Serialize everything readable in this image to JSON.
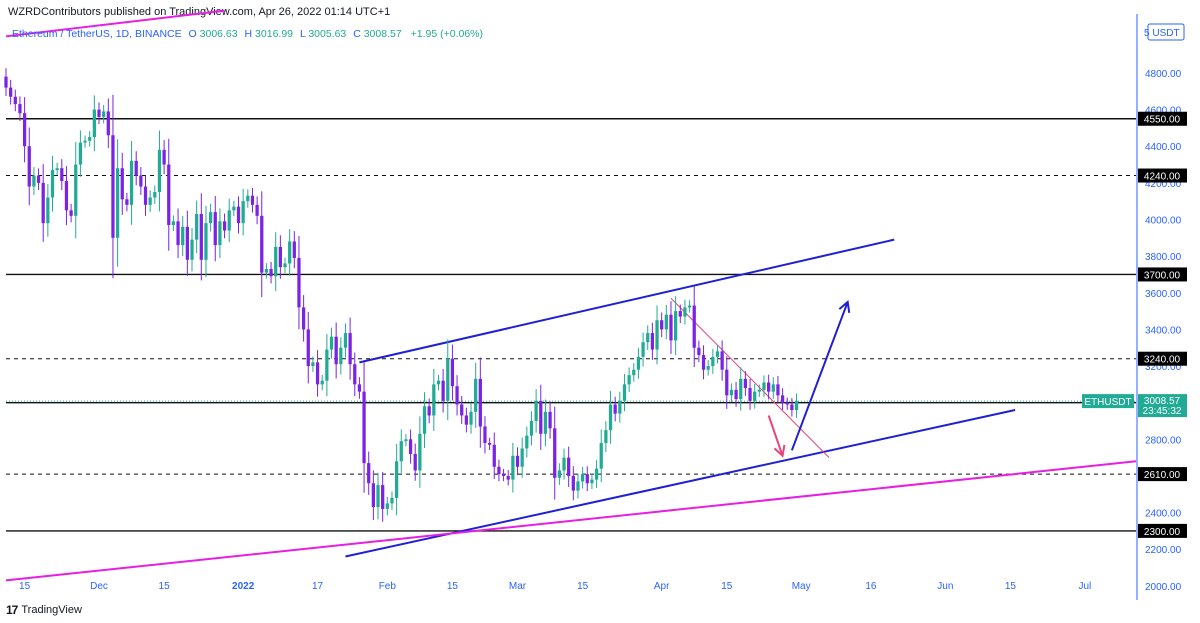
{
  "header": {
    "published": "WZRDContributors published on TradingView.com, Apr 26, 2022 01:14 UTC+1"
  },
  "legend": {
    "symbol": "Ethereum / TetherUS, 1D, BINANCE",
    "o_label": "O",
    "o_value": "3006.63",
    "h_label": "H",
    "h_value": "3016.99",
    "l_label": "L",
    "l_value": "3005.63",
    "c_label": "C",
    "c_value": "3008.57",
    "change": "+1.95 (+0.06%)"
  },
  "currency_badge": "USDT",
  "price_scale_partial": "5",
  "footer": {
    "brand_icon": "17",
    "brand_text": "TradingView"
  },
  "colors": {
    "up": "#22ab94",
    "down": "#7b22e5",
    "axis_text": "#2962ff",
    "blue_trend": "#1f1fd6",
    "magenta_trend": "#e61ee6",
    "red_trend": "#e8467a",
    "label_bg": "#000000",
    "current_price_bg": "#22ab94"
  },
  "chart_data": {
    "type": "candlestick",
    "symbol": "Ethereum / TetherUS",
    "interval": "1D",
    "exchange": "BINANCE",
    "ylim": [
      1950,
      5100
    ],
    "y_ticks": [
      2000,
      2200,
      2400,
      2600,
      2800,
      3000,
      3200,
      3400,
      3600,
      3800,
      4000,
      4200,
      4400,
      4600,
      4800
    ],
    "y_tick_labels": [
      "2000.00",
      "2200.00",
      "2400.00",
      "2600.00",
      "2800.00",
      "3000.00",
      "3200.00",
      "3400.00",
      "3600.00",
      "3800.00",
      "4000.00",
      "4200.00",
      "4400.00",
      "4600.00",
      "4800.00"
    ],
    "x_date_range": [
      "2021-11-11",
      "2022-07-12"
    ],
    "x_ticks": [
      {
        "date": "2021-11-15",
        "label": "15"
      },
      {
        "date": "2021-12-01",
        "label": "Dec"
      },
      {
        "date": "2021-12-15",
        "label": "15"
      },
      {
        "date": "2022-01-01",
        "label": "2022"
      },
      {
        "date": "2022-01-17",
        "label": "17"
      },
      {
        "date": "2022-02-01",
        "label": "Feb"
      },
      {
        "date": "2022-02-15",
        "label": "15"
      },
      {
        "date": "2022-03-01",
        "label": "Mar"
      },
      {
        "date": "2022-03-15",
        "label": "15"
      },
      {
        "date": "2022-04-01",
        "label": "Apr"
      },
      {
        "date": "2022-04-15",
        "label": "15"
      },
      {
        "date": "2022-05-01",
        "label": "May"
      },
      {
        "date": "2022-05-16",
        "label": "16"
      },
      {
        "date": "2022-06-01",
        "label": "Jun"
      },
      {
        "date": "2022-06-15",
        "label": "15"
      },
      {
        "date": "2022-07-01",
        "label": "Jul"
      }
    ],
    "start_date": "2021-11-11",
    "closes": [
      4720,
      4670,
      4630,
      4580,
      4400,
      4180,
      4240,
      4200,
      3980,
      4120,
      4270,
      4280,
      4210,
      4050,
      4020,
      4300,
      4420,
      4430,
      4450,
      4600,
      4560,
      4590,
      4460,
      3900,
      4280,
      4110,
      4080,
      4320,
      4240,
      4180,
      4080,
      4120,
      4150,
      4380,
      4300,
      3970,
      3990,
      3860,
      3960,
      3780,
      3890,
      4030,
      3780,
      3980,
      4040,
      3860,
      3990,
      3940,
      4050,
      4070,
      3980,
      4100,
      4130,
      4080,
      4020,
      3710,
      3730,
      3690,
      3850,
      3740,
      3760,
      3880,
      3790,
      3520,
      3400,
      3200,
      3220,
      3100,
      3120,
      3290,
      3360,
      3210,
      3300,
      3380,
      3210,
      3100,
      3060,
      2670,
      2560,
      2430,
      2550,
      2420,
      2450,
      2480,
      2680,
      2790,
      2800,
      2720,
      2630,
      2830,
      2980,
      2930,
      3100,
      3120,
      3010,
      3240,
      3090,
      2990,
      2930,
      2880,
      2950,
      3130,
      2870,
      2780,
      2770,
      2650,
      2610,
      2600,
      2580,
      2710,
      2650,
      2750,
      2820,
      2900,
      3010,
      2830,
      2950,
      2860,
      2590,
      2630,
      2700,
      2600,
      2520,
      2570,
      2610,
      2560,
      2580,
      2640,
      2780,
      2850,
      2990,
      2940,
      3010,
      3100,
      3150,
      3180,
      3250,
      3330,
      3380,
      3290,
      3450,
      3400,
      3480,
      3340,
      3500,
      3470,
      3520,
      3530,
      3300,
      3260,
      3180,
      3200,
      3250,
      3280,
      3180,
      3040,
      3070,
      3020,
      3130,
      3080,
      3010,
      3060,
      3070,
      3110,
      3060,
      3100,
      3040,
      3000,
      2990,
      2960,
      3008.57
    ],
    "horizontal_levels": [
      {
        "price": 4550,
        "label": "4550.00",
        "style": "solid"
      },
      {
        "price": 4240,
        "label": "4240.00",
        "style": "dashed"
      },
      {
        "price": 3700,
        "label": "3700.00",
        "style": "solid"
      },
      {
        "price": 3240,
        "label": "3240.00",
        "style": "dashed"
      },
      {
        "price": 3000,
        "label": "3000.00",
        "style": "solid"
      },
      {
        "price": 2610,
        "label": "2610.00",
        "style": "dashed"
      },
      {
        "price": 2300,
        "label": "2300.00",
        "style": "solid"
      }
    ],
    "current_price": {
      "price": 3008.57,
      "symbol_label": "ETHUSDT",
      "value_label": "3008.57",
      "countdown": "23:45:32"
    },
    "trendlines": [
      {
        "name": "channel-upper",
        "color": "blue",
        "from": {
          "date": "2022-01-26",
          "price": 3220
        },
        "to": {
          "date": "2022-05-21",
          "price": 3890
        }
      },
      {
        "name": "channel-lower",
        "color": "blue",
        "from": {
          "date": "2022-01-23",
          "price": 2160
        },
        "to": {
          "date": "2022-06-16",
          "price": 2960
        }
      },
      {
        "name": "long-support",
        "color": "magenta",
        "from": {
          "date": "2021-11-11",
          "price": 2030
        },
        "to": {
          "date": "2022-07-12",
          "price": 2680
        }
      },
      {
        "name": "long-upper",
        "color": "magenta",
        "from": {
          "date": "2021-11-11",
          "price": 5000
        },
        "to": {
          "date": "2021-12-28",
          "price": 5140
        }
      },
      {
        "name": "descending-resistance",
        "color": "red",
        "from": {
          "date": "2022-04-03",
          "price": 3570
        },
        "to": {
          "date": "2022-05-07",
          "price": 2700
        }
      }
    ],
    "arrows": [
      {
        "name": "down-arrow",
        "color": "red",
        "from": {
          "date": "2022-04-24",
          "price": 2930
        },
        "to": {
          "date": "2022-04-27",
          "price": 2710
        }
      },
      {
        "name": "up-arrow",
        "color": "blue",
        "from": {
          "date": "2022-04-29",
          "price": 2740
        },
        "to": {
          "date": "2022-05-11",
          "price": 3550
        }
      }
    ]
  }
}
